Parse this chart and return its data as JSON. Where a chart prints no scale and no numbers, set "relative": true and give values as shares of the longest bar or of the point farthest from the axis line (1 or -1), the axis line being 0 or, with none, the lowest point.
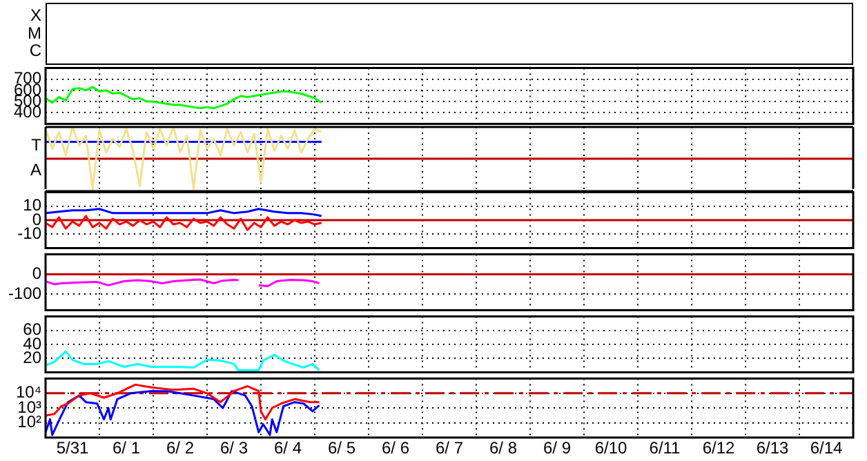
{
  "chart_data": [
    {
      "type": "other",
      "annotations": [
        "X",
        "M",
        "C"
      ]
    },
    {
      "type": "line",
      "grid": true,
      "tick_labels": "y",
      "xlim": [
        "--05-31",
        "--06-15"
      ],
      "xticks": [
        {
          "value": "--05-31",
          "label": null
        },
        {
          "value": "--06-01",
          "label": null
        },
        {
          "value": "--06-02",
          "label": null
        },
        {
          "value": "--06-03",
          "label": null
        },
        {
          "value": "--06-04",
          "label": null
        },
        {
          "value": "--06-05",
          "label": null
        },
        {
          "value": "--06-06",
          "label": null
        },
        {
          "value": "--06-07",
          "label": null
        },
        {
          "value": "--06-08",
          "label": null
        },
        {
          "value": "--06-09",
          "label": null
        },
        {
          "value": "--06-10",
          "label": null
        },
        {
          "value": "--06-11",
          "label": null
        },
        {
          "value": "--06-12",
          "label": null
        },
        {
          "value": "--06-13",
          "label": null
        },
        {
          "value": "--06-14",
          "label": null
        },
        {
          "value": "--06-15",
          "label": null
        }
      ],
      "ylim": [
        300,
        800
      ],
      "yticks": [
        400,
        500,
        600,
        700
      ],
      "x": [
        "--05-31T00:00",
        "--05-31T03:00",
        "--05-31T06:00",
        "--05-31T09:00",
        "--05-31T12:00",
        "--05-31T15:00",
        "--05-31T18:00",
        "--05-31T21:00",
        "--06-01T00:00",
        "--06-01T03:00",
        "--06-01T06:00",
        "--06-01T09:00",
        "--06-01T12:00",
        "--06-01T15:00",
        "--06-01T18:00",
        "--06-01T21:00",
        "--06-02T00:00",
        "--06-02T03:00",
        "--06-02T06:00",
        "--06-02T09:00",
        "--06-02T12:00",
        "--06-02T15:00",
        "--06-02T18:00",
        "--06-02T21:00",
        "--06-03T00:00",
        "--06-03T03:00",
        "--06-03T06:00",
        "--06-03T09:00",
        "--06-03T12:00",
        "--06-03T15:00",
        "--06-03T18:00",
        "--06-03T21:00",
        "--06-04T00:00",
        "--06-04T03:00",
        "--06-04T06:00",
        "--06-04T09:00",
        "--06-04T12:00",
        "--06-04T15:00",
        "--06-04T18:00",
        "--06-04T21:00",
        "--06-05T00:00",
        "--06-05T03:00"
      ],
      "series": [
        {
          "color": "#00ff00",
          "values": [
            530,
            490,
            540,
            510,
            610,
            620,
            600,
            630,
            590,
            600,
            570,
            580,
            550,
            520,
            530,
            500,
            500,
            490,
            480,
            470,
            470,
            460,
            450,
            440,
            450,
            440,
            460,
            480,
            520,
            550,
            540,
            550,
            560,
            570,
            580,
            590,
            590,
            580,
            570,
            550,
            530,
            490
          ]
        }
      ]
    },
    {
      "type": "line",
      "grid": true,
      "tick_labels": "y",
      "xlim": [
        "--05-31",
        "--06-15"
      ],
      "xticks": [
        {
          "value": "--05-31",
          "label": null
        },
        {
          "value": "--06-01",
          "label": null
        },
        {
          "value": "--06-02",
          "label": null
        },
        {
          "value": "--06-03",
          "label": null
        },
        {
          "value": "--06-04",
          "label": null
        },
        {
          "value": "--06-05",
          "label": null
        },
        {
          "value": "--06-06",
          "label": null
        },
        {
          "value": "--06-07",
          "label": null
        },
        {
          "value": "--06-08",
          "label": null
        },
        {
          "value": "--06-09",
          "label": null
        },
        {
          "value": "--06-10",
          "label": null
        },
        {
          "value": "--06-11",
          "label": null
        },
        {
          "value": "--06-12",
          "label": null
        },
        {
          "value": "--06-13",
          "label": null
        },
        {
          "value": "--06-14",
          "label": null
        },
        {
          "value": "--06-15",
          "label": null
        }
      ],
      "relative": true,
      "annotations": [
        "T",
        "A"
      ],
      "ref_lines": [
        {
          "axis": "y",
          "value": 0.49,
          "color": "#c00000"
        }
      ],
      "x": [
        "--05-31T00:00",
        "--05-31T03:00",
        "--05-31T06:00",
        "--05-31T09:00",
        "--05-31T12:00",
        "--05-31T15:00",
        "--05-31T18:00",
        "--05-31T21:00",
        "--06-01T00:00",
        "--06-01T03:00",
        "--06-01T06:00",
        "--06-01T09:00",
        "--06-01T12:00",
        "--06-01T15:00",
        "--06-01T18:00",
        "--06-01T21:00",
        "--06-02T00:00",
        "--06-02T03:00",
        "--06-02T06:00",
        "--06-02T09:00",
        "--06-02T12:00",
        "--06-02T15:00",
        "--06-02T18:00",
        "--06-02T21:00",
        "--06-03T00:00",
        "--06-03T03:00",
        "--06-03T06:00",
        "--06-03T09:00",
        "--06-03T12:00",
        "--06-03T15:00",
        "--06-03T18:00",
        "--06-03T21:00",
        "--06-04T00:00",
        "--06-04T03:00",
        "--06-04T06:00",
        "--06-04T09:00",
        "--06-04T12:00",
        "--06-04T15:00",
        "--06-04T18:00",
        "--06-04T21:00",
        "--06-05T00:00",
        "--06-05T03:00"
      ],
      "series": [
        {
          "color": "#f5e08a",
          "values": [
            0.97,
            0.65,
            0.92,
            0.54,
            1,
            0.7,
            0.86,
            0,
            0.95,
            0.59,
            0.81,
            0.68,
            0.97,
            0.62,
            0.05,
            0.92,
            0.65,
            0.97,
            0.7,
            1,
            0.59,
            0.86,
            0,
            0.95,
            0.65,
            0.81,
            0.54,
            0.97,
            0.7,
            0.92,
            0.59,
            0.89,
            0.11,
            0.97,
            0.62,
            0.86,
            0.65,
            0.95,
            0.59,
            0.81,
            0.97,
            0.92
          ]
        },
        {
          "color": "#0000ff",
          "x": [
            "--05-31T00:00",
            "--06-05T03:00"
          ],
          "values": [
            0.76,
            0.76
          ]
        }
      ]
    },
    {
      "type": "line",
      "grid": true,
      "tick_labels": "y",
      "xlim": [
        "--05-31",
        "--06-15"
      ],
      "xticks": [
        {
          "value": "--05-31",
          "label": null
        },
        {
          "value": "--06-01",
          "label": null
        },
        {
          "value": "--06-02",
          "label": null
        },
        {
          "value": "--06-03",
          "label": null
        },
        {
          "value": "--06-04",
          "label": null
        },
        {
          "value": "--06-05",
          "label": null
        },
        {
          "value": "--06-06",
          "label": null
        },
        {
          "value": "--06-07",
          "label": null
        },
        {
          "value": "--06-08",
          "label": null
        },
        {
          "value": "--06-09",
          "label": null
        },
        {
          "value": "--06-10",
          "label": null
        },
        {
          "value": "--06-11",
          "label": null
        },
        {
          "value": "--06-12",
          "label": null
        },
        {
          "value": "--06-13",
          "label": null
        },
        {
          "value": "--06-14",
          "label": null
        },
        {
          "value": "--06-15",
          "label": null
        }
      ],
      "ylim": [
        -20,
        20
      ],
      "yticks": [
        -10,
        0,
        10
      ],
      "ref_lines": [
        {
          "axis": "y",
          "value": 0,
          "color": "#c00000"
        }
      ],
      "x": [
        "--05-31T00:00",
        "--05-31T03:00",
        "--05-31T06:00",
        "--05-31T09:00",
        "--05-31T12:00",
        "--05-31T15:00",
        "--05-31T18:00",
        "--05-31T21:00",
        "--06-01T00:00",
        "--06-01T03:00",
        "--06-01T06:00",
        "--06-01T09:00",
        "--06-01T12:00",
        "--06-01T15:00",
        "--06-01T18:00",
        "--06-01T21:00",
        "--06-02T00:00",
        "--06-02T03:00",
        "--06-02T06:00",
        "--06-02T09:00",
        "--06-02T12:00",
        "--06-02T15:00",
        "--06-02T18:00",
        "--06-02T21:00",
        "--06-03T00:00",
        "--06-03T03:00",
        "--06-03T06:00",
        "--06-03T09:00",
        "--06-03T12:00",
        "--06-03T15:00",
        "--06-03T18:00",
        "--06-03T21:00",
        "--06-04T00:00",
        "--06-04T03:00",
        "--06-04T06:00",
        "--06-04T09:00",
        "--06-04T12:00",
        "--06-04T15:00",
        "--06-04T18:00",
        "--06-04T21:00",
        "--06-05T00:00",
        "--06-05T03:00"
      ],
      "series": [
        {
          "color": "#0000ff",
          "x": [
            "--05-31T00:00",
            "--05-31T06:00",
            "--05-31T12:00",
            "--05-31T18:00",
            "--06-01T00:00",
            "--06-01T06:00",
            "--06-01T12:00",
            "--06-01T18:00",
            "--06-02T00:00",
            "--06-02T06:00",
            "--06-02T12:00",
            "--06-02T18:00",
            "--06-03T00:00",
            "--06-03T06:00",
            "--06-03T12:00",
            "--06-03T18:00",
            "--06-03T23:00",
            "--06-04T06:00",
            "--06-04T12:00",
            "--06-04T18:00",
            "--06-05T00:00",
            "--06-05T03:00"
          ],
          "values": [
            5,
            6,
            7,
            7,
            8,
            5,
            5,
            5,
            5,
            5,
            5,
            5,
            5,
            7,
            5,
            6,
            8,
            6,
            5,
            5,
            4,
            3
          ]
        },
        {
          "color": "#ff0000",
          "values": [
            -2,
            -5,
            2,
            -6,
            -1,
            -4,
            3,
            -5,
            -2,
            -6,
            1,
            -3,
            -1,
            -4,
            0,
            -3,
            -1,
            -5,
            2,
            -3,
            -2,
            -5,
            1,
            -2,
            -1,
            -4,
            2,
            -3,
            -6,
            1,
            -7,
            -2,
            -5,
            2,
            -4,
            -1,
            -3,
            0,
            -2,
            -1,
            -3,
            -2
          ]
        }
      ]
    },
    {
      "type": "line",
      "grid": true,
      "tick_labels": "y",
      "xlim": [
        "--05-31",
        "--06-15"
      ],
      "xticks": [
        {
          "value": "--05-31",
          "label": null
        },
        {
          "value": "--06-01",
          "label": null
        },
        {
          "value": "--06-02",
          "label": null
        },
        {
          "value": "--06-03",
          "label": null
        },
        {
          "value": "--06-04",
          "label": null
        },
        {
          "value": "--06-05",
          "label": null
        },
        {
          "value": "--06-06",
          "label": null
        },
        {
          "value": "--06-07",
          "label": null
        },
        {
          "value": "--06-08",
          "label": null
        },
        {
          "value": "--06-09",
          "label": null
        },
        {
          "value": "--06-10",
          "label": null
        },
        {
          "value": "--06-11",
          "label": null
        },
        {
          "value": "--06-12",
          "label": null
        },
        {
          "value": "--06-13",
          "label": null
        },
        {
          "value": "--06-14",
          "label": null
        },
        {
          "value": "--06-15",
          "label": null
        }
      ],
      "ylim": [
        -180,
        100
      ],
      "yticks": [
        -100,
        0
      ],
      "ref_lines": [
        {
          "axis": "y",
          "value": 0,
          "color": "#c00000"
        }
      ],
      "series": [
        {
          "color": "#ff00ff",
          "x": [
            "--05-31T00:00",
            "--05-31T04:00",
            "--05-31T07:00",
            "--05-31T17:00",
            "--05-31T23:00",
            "--06-01T04:00",
            "--06-01T11:00",
            "--06-01T17:00",
            "--06-01T23:00",
            "--06-02T04:00",
            "--06-02T09:00",
            "--06-02T18:00",
            "--06-02T21:00",
            "--06-03T03:00",
            "--06-03T07:00",
            "--06-03T12:00",
            "--06-03T14:00",
            "--06-03T18:00",
            "--06-03T23:00",
            "--06-04T03:00",
            "--06-04T07:00",
            "--06-04T13:00",
            "--06-04T19:00",
            "--06-04T23:00",
            "--06-05T02:00"
          ],
          "values": [
            -35,
            -50,
            -45,
            -40,
            -38,
            -55,
            -35,
            -30,
            -35,
            -45,
            -35,
            -28,
            -26,
            -45,
            -32,
            -28,
            -30,
            null,
            -55,
            -60,
            -35,
            -28,
            -30,
            -35,
            -45
          ]
        }
      ]
    },
    {
      "type": "line",
      "grid": true,
      "tick_labels": "y",
      "xlim": [
        "--05-31",
        "--06-15"
      ],
      "xticks": [
        {
          "value": "--05-31",
          "label": null
        },
        {
          "value": "--06-01",
          "label": null
        },
        {
          "value": "--06-02",
          "label": null
        },
        {
          "value": "--06-03",
          "label": null
        },
        {
          "value": "--06-04",
          "label": null
        },
        {
          "value": "--06-05",
          "label": null
        },
        {
          "value": "--06-06",
          "label": null
        },
        {
          "value": "--06-07",
          "label": null
        },
        {
          "value": "--06-08",
          "label": null
        },
        {
          "value": "--06-09",
          "label": null
        },
        {
          "value": "--06-10",
          "label": null
        },
        {
          "value": "--06-11",
          "label": null
        },
        {
          "value": "--06-12",
          "label": null
        },
        {
          "value": "--06-13",
          "label": null
        },
        {
          "value": "--06-14",
          "label": null
        },
        {
          "value": "--06-15",
          "label": null
        }
      ],
      "ylim": [
        0,
        80
      ],
      "yticks": [
        20,
        40,
        60
      ],
      "series": [
        {
          "color": "#00ffff",
          "x": [
            "--05-31T00:00",
            "--05-31T04:00",
            "--05-31T09:00",
            "--05-31T12:00",
            "--05-31T17:00",
            "--05-31T23:00",
            "--06-01T04:00",
            "--06-01T11:00",
            "--06-01T17:00",
            "--06-01T23:00",
            "--06-02T09:00",
            "--06-02T18:00",
            "--06-03T00:00",
            "--06-03T06:00",
            "--06-03T12:00",
            "--06-03T14:00",
            "--06-03T23:00",
            "--06-04T01:00",
            "--06-04T06:00",
            "--06-04T10:00",
            "--06-04T14:00",
            "--06-04T19:00",
            "--06-04T23:00",
            "--06-05T02:00"
          ],
          "values": [
            10,
            15,
            30,
            18,
            12,
            12,
            16,
            8,
            12,
            8,
            8,
            7,
            18,
            17,
            12,
            3,
            3,
            17,
            25,
            17,
            12,
            7,
            12,
            3
          ]
        }
      ]
    },
    {
      "type": "line",
      "log": "y",
      "grid": true,
      "xlim": [
        "--05-31",
        "--06-15"
      ],
      "xticks": [
        {
          "value": "--05-31",
          "label": null
        },
        {
          "value": "--05-31T12:00",
          "label": "5/31"
        },
        {
          "value": "--06-01",
          "label": null
        },
        {
          "value": "--06-01T12:00",
          "label": "6/ 1"
        },
        {
          "value": "--06-02",
          "label": null
        },
        {
          "value": "--06-02T12:00",
          "label": "6/ 2"
        },
        {
          "value": "--06-03",
          "label": null
        },
        {
          "value": "--06-03T12:00",
          "label": "6/ 3"
        },
        {
          "value": "--06-04",
          "label": null
        },
        {
          "value": "--06-04T12:00",
          "label": "6/ 4"
        },
        {
          "value": "--06-05",
          "label": null
        },
        {
          "value": "--06-05T12:00",
          "label": "6/ 5"
        },
        {
          "value": "--06-06",
          "label": null
        },
        {
          "value": "--06-06T12:00",
          "label": "6/ 6"
        },
        {
          "value": "--06-07",
          "label": null
        },
        {
          "value": "--06-07T12:00",
          "label": "6/ 7"
        },
        {
          "value": "--06-08",
          "label": null
        },
        {
          "value": "--06-08T12:00",
          "label": "6/ 8"
        },
        {
          "value": "--06-09",
          "label": null
        },
        {
          "value": "--06-09T12:00",
          "label": "6/ 9"
        },
        {
          "value": "--06-10",
          "label": null
        },
        {
          "value": "--06-10T12:00",
          "label": "6/10"
        },
        {
          "value": "--06-11",
          "label": null
        },
        {
          "value": "--06-11T12:00",
          "label": "6/11"
        },
        {
          "value": "--06-12",
          "label": null
        },
        {
          "value": "--06-12T12:00",
          "label": "6/12"
        },
        {
          "value": "--06-13",
          "label": null
        },
        {
          "value": "--06-13T12:00",
          "label": "6/13"
        },
        {
          "value": "--06-14",
          "label": null
        },
        {
          "value": "--06-14T12:00",
          "label": "6/14"
        },
        {
          "value": "--06-15",
          "label": null
        }
      ],
      "ylim": [
        10,
        100000
      ],
      "yticks": [
        {
          "value": 100,
          "label": "10²"
        },
        {
          "value": 1000,
          "label": "10³"
        },
        {
          "value": 10000,
          "label": "10⁴"
        }
      ],
      "ref_lines": [
        {
          "axis": "y",
          "value": 10000,
          "color": "#c00000",
          "line_style": "dashed"
        }
      ],
      "series": [
        {
          "color": "#ff0000",
          "x": [
            "--05-31T00:00",
            "--05-31T04:00",
            "--05-31T07:00",
            "--05-31T10:00",
            "--05-31T15:00",
            "--05-31T20:00",
            "--06-01T02:00",
            "--06-01T08:00",
            "--06-01T16:00",
            "--06-01T23:00",
            "--06-02T09:00",
            "--06-02T18:00",
            "--06-03T00:00",
            "--06-03T06:00",
            "--06-03T12:00",
            "--06-03T18:00",
            "--06-03T23:00",
            "--06-04T00:00",
            "--06-04T02:00",
            "--06-04T05:00",
            "--06-04T09:00",
            "--06-04T15:00",
            "--06-04T22:00",
            "--06-05T02:00"
          ],
          "values": [
            300,
            400,
            1300,
            2000,
            7000,
            10000,
            5000,
            10000,
            38000,
            25000,
            17000,
            20000,
            10000,
            2500,
            14000,
            30000,
            14000,
            600,
            170,
            1000,
            2000,
            4000,
            2500,
            2500
          ]
        },
        {
          "color": "#0000ff",
          "x": [
            "--05-31T00:00",
            "--05-31T02:00",
            "--05-31T03:00",
            "--05-31T07:00",
            "--05-31T10:00",
            "--05-31T15:00",
            "--05-31T18:00",
            "--05-31T23:00",
            "--06-01T02:00",
            "--06-01T04:00",
            "--06-01T05:00",
            "--06-01T08:00",
            "--06-01T14:00",
            "--06-01T23:00",
            "--06-02T06:00",
            "--06-02T12:00",
            "--06-02T18:00",
            "--06-03T03:00",
            "--06-03T07:00",
            "--06-03T11:00",
            "--06-03T17:00",
            "--06-03T20:00",
            "--06-03T23:00",
            "--06-04T01:00",
            "--06-04T04:00",
            "--06-04T05:00",
            "--06-04T07:00",
            "--06-04T10:00",
            "--06-04T15:00",
            "--06-04T19:00",
            "--06-04T23:00",
            "--06-05T02:00"
          ],
          "values": [
            23,
            170,
            15,
            300,
            2500,
            7000,
            2500,
            2000,
            170,
            1000,
            170,
            4000,
            10000,
            14000,
            14000,
            10000,
            7000,
            4000,
            1000,
            14000,
            7000,
            1300,
            23,
            80,
            15,
            170,
            23,
            1300,
            2500,
            2000,
            600,
            1500
          ]
        }
      ]
    }
  ]
}
